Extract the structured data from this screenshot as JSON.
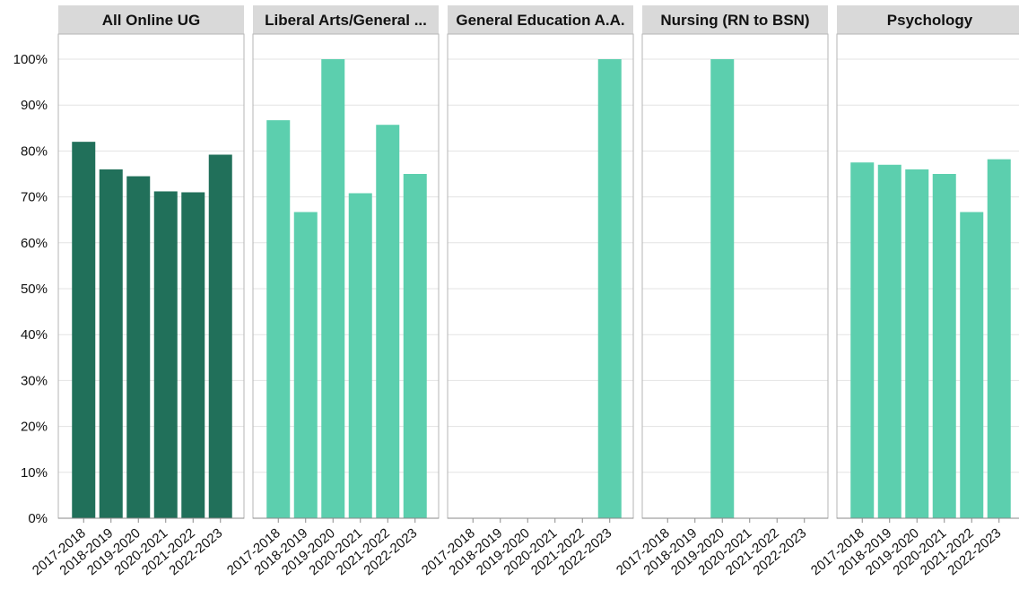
{
  "chart_data": {
    "type": "bar",
    "categories": [
      "2017-2018",
      "2018-2019",
      "2019-2020",
      "2020-2021",
      "2021-2022",
      "2022-2023"
    ],
    "y_ticks": [
      "0%",
      "10%",
      "20%",
      "30%",
      "40%",
      "50%",
      "60%",
      "70%",
      "80%",
      "90%",
      "100%"
    ],
    "ylim": [
      0,
      100
    ],
    "grid": true,
    "panels": [
      {
        "title": "All Online UG",
        "color": "#21705a",
        "values": [
          82,
          76,
          74.5,
          71.2,
          71,
          79.2
        ]
      },
      {
        "title": "Liberal Arts/General ...",
        "color": "#5ccfae",
        "values": [
          86.7,
          66.7,
          100,
          70.8,
          85.7,
          75
        ]
      },
      {
        "title": "General Education A.A.",
        "color": "#5ccfae",
        "values": [
          0,
          0,
          0,
          0,
          0,
          100
        ]
      },
      {
        "title": "Nursing (RN to BSN)",
        "color": "#5ccfae",
        "values": [
          0,
          0,
          100,
          0,
          0,
          0
        ]
      },
      {
        "title": "Psychology",
        "color": "#5ccfae",
        "values": [
          77.5,
          77,
          76,
          75,
          66.7,
          78.2
        ]
      }
    ]
  }
}
